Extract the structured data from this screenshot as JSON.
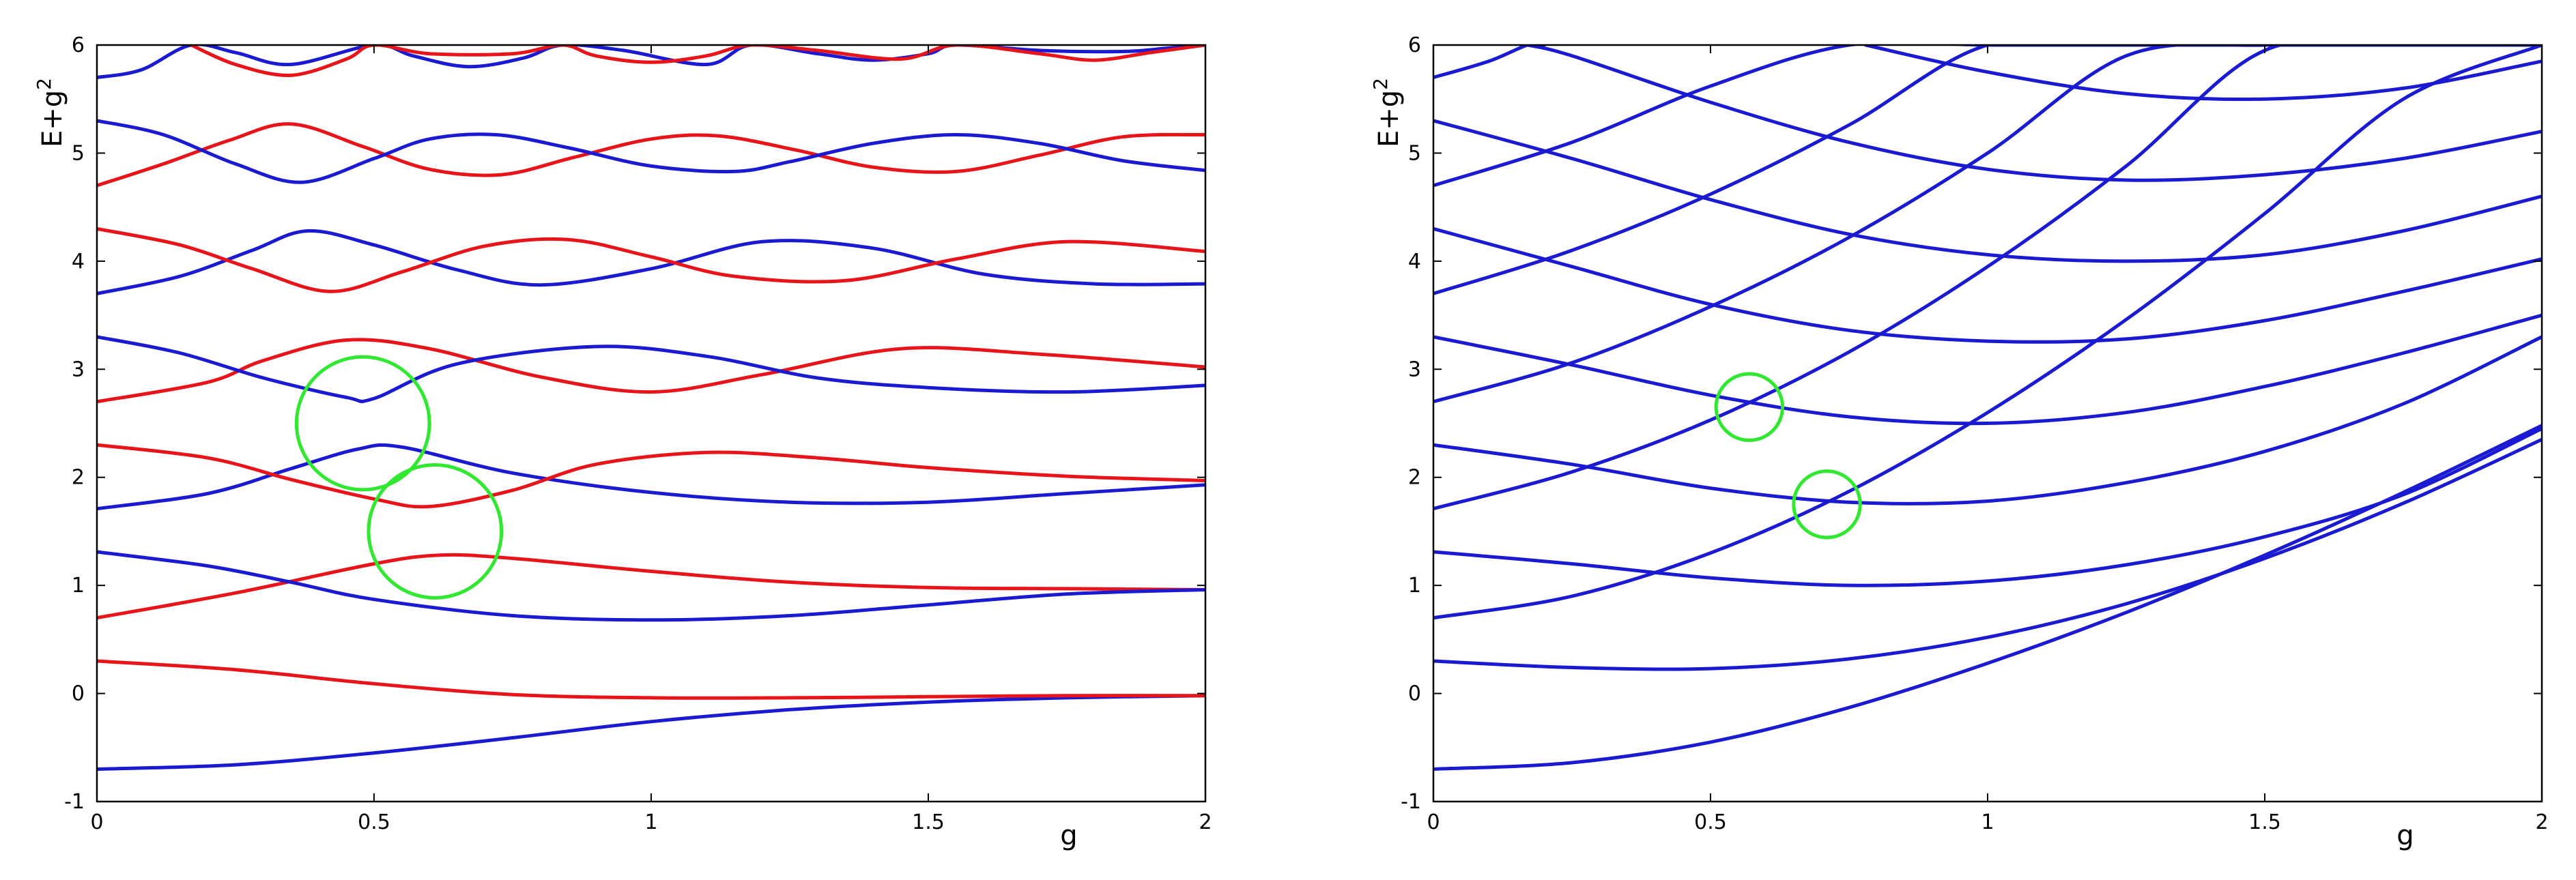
{
  "chart_data": [
    {
      "type": "line",
      "xlabel": "g",
      "ylabel": "E+g",
      "ylabel_sup": "2",
      "xlim": [
        0,
        2
      ],
      "ylim": [
        -1,
        6
      ],
      "xticks": [
        "0",
        "0.5",
        "1",
        "1.5",
        "2"
      ],
      "yticks": [
        "-1",
        "0",
        "1",
        "2",
        "3",
        "4",
        "5",
        "6"
      ],
      "grid": false,
      "legend": "none",
      "colors": {
        "red": "#e8141a",
        "blue": "#1a1ad2",
        "marker": "#2fe82f"
      },
      "series": [
        {
          "color": "blue",
          "x": [
            0,
            0.25,
            0.5,
            0.75,
            1,
            1.25,
            1.5,
            1.75,
            2
          ],
          "y": [
            -0.7,
            -0.66,
            -0.55,
            -0.41,
            -0.26,
            -0.15,
            -0.08,
            -0.04,
            -0.02
          ]
        },
        {
          "color": "red",
          "x": [
            0,
            0.25,
            0.5,
            0.75,
            1,
            1.25,
            1.5,
            1.75,
            2
          ],
          "y": [
            0.3,
            0.22,
            0.09,
            -0.01,
            -0.04,
            -0.04,
            -0.03,
            -0.02,
            -0.02
          ]
        },
        {
          "color": "red",
          "x": [
            0,
            0.25,
            0.5,
            0.62,
            0.75,
            1,
            1.25,
            1.5,
            1.75,
            2
          ],
          "y": [
            0.7,
            0.93,
            1.2,
            1.28,
            1.25,
            1.13,
            1.03,
            0.98,
            0.97,
            0.96
          ]
        },
        {
          "color": "blue",
          "x": [
            0,
            0.2,
            0.35,
            0.5,
            0.75,
            1,
            1.25,
            1.5,
            1.75,
            2
          ],
          "y": [
            1.31,
            1.18,
            1.03,
            0.87,
            0.72,
            0.68,
            0.72,
            0.82,
            0.92,
            0.96
          ]
        },
        {
          "color": "blue",
          "x": [
            0,
            0.2,
            0.35,
            0.47,
            0.55,
            0.75,
            1,
            1.25,
            1.5,
            1.75,
            2
          ],
          "y": [
            1.71,
            1.85,
            2.08,
            2.26,
            2.28,
            2.04,
            1.86,
            1.77,
            1.77,
            1.85,
            1.93
          ]
        },
        {
          "color": "red",
          "x": [
            0,
            0.2,
            0.35,
            0.5,
            0.6,
            0.75,
            0.9,
            1.1,
            1.3,
            1.5,
            1.75,
            2
          ],
          "y": [
            2.3,
            2.18,
            1.98,
            1.8,
            1.73,
            1.88,
            2.12,
            2.23,
            2.18,
            2.09,
            2.01,
            1.97
          ]
        },
        {
          "color": "red",
          "x": [
            0,
            0.2,
            0.3,
            0.45,
            0.6,
            0.8,
            1,
            1.2,
            1.45,
            1.7,
            2
          ],
          "y": [
            2.7,
            2.88,
            3.08,
            3.27,
            3.19,
            2.93,
            2.79,
            2.95,
            3.19,
            3.14,
            3.02
          ]
        },
        {
          "color": "blue",
          "x": [
            0,
            0.15,
            0.3,
            0.45,
            0.5,
            0.65,
            0.9,
            1.1,
            1.3,
            1.5,
            1.75,
            2
          ],
          "y": [
            3.3,
            3.15,
            2.92,
            2.74,
            2.73,
            3.05,
            3.21,
            3.12,
            2.92,
            2.83,
            2.79,
            2.85
          ]
        },
        {
          "color": "blue",
          "x": [
            0,
            0.15,
            0.28,
            0.38,
            0.5,
            0.65,
            0.8,
            1,
            1.2,
            1.4,
            1.6,
            1.8,
            2
          ],
          "y": [
            3.7,
            3.86,
            4.1,
            4.28,
            4.15,
            3.92,
            3.78,
            3.93,
            4.18,
            4.12,
            3.88,
            3.79,
            3.79
          ]
        },
        {
          "color": "red",
          "x": [
            0,
            0.15,
            0.28,
            0.42,
            0.55,
            0.7,
            0.85,
            1,
            1.15,
            1.35,
            1.55,
            1.75,
            2
          ],
          "y": [
            4.3,
            4.15,
            3.93,
            3.72,
            3.9,
            4.14,
            4.2,
            4.04,
            3.86,
            3.82,
            4.02,
            4.18,
            4.09
          ]
        },
        {
          "color": "red",
          "x": [
            0,
            0.12,
            0.24,
            0.35,
            0.48,
            0.6,
            0.73,
            0.86,
            1,
            1.12,
            1.26,
            1.4,
            1.55,
            1.7,
            1.85,
            2
          ],
          "y": [
            4.7,
            4.9,
            5.12,
            5.27,
            5.06,
            4.85,
            4.8,
            4.96,
            5.13,
            5.16,
            5.03,
            4.87,
            4.83,
            4.98,
            5.15,
            5.17
          ]
        },
        {
          "color": "blue",
          "x": [
            0,
            0.12,
            0.25,
            0.37,
            0.5,
            0.6,
            0.72,
            0.85,
            1,
            1.15,
            1.25,
            1.4,
            1.55,
            1.7,
            1.85,
            2
          ],
          "y": [
            5.3,
            5.17,
            4.9,
            4.73,
            4.95,
            5.13,
            5.17,
            5.05,
            4.88,
            4.83,
            4.92,
            5.09,
            5.17,
            5.09,
            4.93,
            4.84
          ]
        },
        {
          "color": "blue",
          "x": [
            0,
            0.08,
            0.17,
            0.25,
            0.35,
            0.5,
            0.57,
            0.67,
            0.77,
            0.84,
            0.95,
            1.1,
            1.18,
            1.3,
            1.4,
            1.5,
            1.55,
            1.7,
            1.85,
            1.93,
            2
          ],
          "y": [
            5.7,
            5.77,
            6.0,
            5.93,
            5.82,
            6.0,
            5.9,
            5.8,
            5.88,
            6.0,
            5.95,
            5.82,
            6.0,
            5.92,
            5.86,
            5.92,
            6.0,
            5.95,
            5.94,
            5.97,
            6.0
          ]
        },
        {
          "color": "red",
          "x": [
            0.17,
            0.25,
            0.35,
            0.45,
            0.5,
            0.6,
            0.75,
            0.84,
            0.9,
            1,
            1.1,
            1.18,
            1.3,
            1.45,
            1.55,
            1.7,
            1.8,
            1.9,
            2
          ],
          "y": [
            6.0,
            5.82,
            5.72,
            5.87,
            6.0,
            5.92,
            5.92,
            6.0,
            5.9,
            5.84,
            5.9,
            6.0,
            5.95,
            5.87,
            6.0,
            5.92,
            5.86,
            5.93,
            6.0
          ]
        }
      ],
      "annotations": [
        {
          "shape": "circle",
          "x": 0.48,
          "y": 2.5,
          "r": 0.12
        },
        {
          "shape": "circle",
          "x": 0.61,
          "y": 1.5,
          "r": 0.12
        }
      ]
    },
    {
      "type": "line",
      "xlabel": "g",
      "ylabel": "E+g",
      "ylabel_sup": "2",
      "xlim": [
        0,
        2
      ],
      "ylim": [
        -1,
        6
      ],
      "xticks": [
        "0",
        "0.5",
        "1",
        "1.5",
        "2"
      ],
      "yticks": [
        "-1",
        "0",
        "1",
        "2",
        "3",
        "4",
        "5",
        "6"
      ],
      "grid": false,
      "legend": "none",
      "colors": {
        "blue": "#1a1ad2",
        "marker": "#2fe82f"
      },
      "series": [
        {
          "color": "blue",
          "x": [
            0,
            0.25,
            0.5,
            0.75,
            1,
            1.25,
            1.5,
            1.75,
            2
          ],
          "y": [
            -0.7,
            -0.64,
            -0.45,
            -0.13,
            0.28,
            0.75,
            1.28,
            1.86,
            2.48
          ]
        },
        {
          "color": "blue",
          "x": [
            0,
            0.25,
            0.5,
            0.75,
            1,
            1.25,
            1.5,
            1.75,
            2
          ],
          "y": [
            0.3,
            0.24,
            0.23,
            0.32,
            0.52,
            0.83,
            1.25,
            1.76,
            2.35
          ]
        },
        {
          "color": "blue",
          "x": [
            0,
            0.25,
            0.5,
            0.75,
            1,
            1.25,
            1.5,
            1.75,
            2
          ],
          "y": [
            0.7,
            0.9,
            1.3,
            1.87,
            2.6,
            3.46,
            4.44,
            5.5,
            6.0
          ]
        },
        {
          "color": "blue",
          "x": [
            0,
            0.25,
            0.5,
            0.75,
            1,
            1.25,
            1.5,
            1.75,
            2
          ],
          "y": [
            1.31,
            1.2,
            1.07,
            1.0,
            1.04,
            1.19,
            1.45,
            1.84,
            2.45
          ]
        },
        {
          "color": "blue",
          "x": [
            0,
            0.25,
            0.5,
            0.75,
            1,
            1.25,
            1.5,
            1.75,
            2
          ],
          "y": [
            1.71,
            2.05,
            2.53,
            3.16,
            3.95,
            4.88,
            5.95,
            6.0,
            6.0
          ]
        },
        {
          "color": "blue",
          "x": [
            0,
            0.25,
            0.5,
            0.75,
            1,
            1.25,
            1.5,
            1.75,
            2
          ],
          "y": [
            2.3,
            2.12,
            1.9,
            1.77,
            1.78,
            1.95,
            2.24,
            2.68,
            3.3
          ]
        },
        {
          "color": "blue",
          "x": [
            0,
            0.25,
            0.5,
            0.75,
            1,
            1.25,
            1.5,
            1.75,
            2
          ],
          "y": [
            2.7,
            3.06,
            3.58,
            4.22,
            5.0,
            5.9,
            6.0,
            6.0,
            6.0
          ]
        },
        {
          "color": "blue",
          "x": [
            0,
            0.25,
            0.5,
            0.75,
            1,
            1.25,
            1.5,
            1.75,
            2
          ],
          "y": [
            3.3,
            3.04,
            2.76,
            2.56,
            2.5,
            2.6,
            2.84,
            3.15,
            3.5
          ]
        },
        {
          "color": "blue",
          "x": [
            0,
            0.25,
            0.5,
            0.75,
            1,
            1.25,
            1.5,
            1.75,
            2
          ],
          "y": [
            3.7,
            4.1,
            4.62,
            5.26,
            6.0,
            6.0,
            6.0,
            6.0,
            6.0
          ]
        },
        {
          "color": "blue",
          "x": [
            0,
            0.25,
            0.5,
            0.75,
            1,
            1.25,
            1.5,
            1.75,
            2
          ],
          "y": [
            4.3,
            3.95,
            3.6,
            3.36,
            3.26,
            3.28,
            3.45,
            3.72,
            4.02
          ]
        },
        {
          "color": "blue",
          "x": [
            0,
            0.25,
            0.5,
            0.75,
            1,
            1.25
          ],
          "y": [
            4.7,
            5.1,
            5.62,
            6.0,
            6.0,
            6.0
          ]
        },
        {
          "color": "blue",
          "x": [
            0,
            0.25,
            0.5,
            0.75,
            1,
            1.25,
            1.5,
            1.75,
            2
          ],
          "y": [
            5.3,
            4.95,
            4.57,
            4.25,
            4.06,
            4.0,
            4.06,
            4.28,
            4.6
          ]
        },
        {
          "color": "blue",
          "x": [
            0,
            0.1,
            0.17,
            0.2
          ],
          "y": [
            5.7,
            5.85,
            6.0,
            6.0
          ]
        },
        {
          "color": "blue",
          "x": [
            0.17,
            0.25,
            0.5,
            0.75,
            1,
            1.25,
            1.5,
            1.75,
            2
          ],
          "y": [
            6.0,
            5.9,
            5.47,
            5.1,
            4.85,
            4.75,
            4.8,
            4.95,
            5.2
          ]
        },
        {
          "color": "blue",
          "x": [
            0.78,
            1,
            1.25,
            1.5,
            1.75,
            2
          ],
          "y": [
            6.0,
            5.75,
            5.55,
            5.5,
            5.6,
            5.85
          ]
        }
      ],
      "annotations": [
        {
          "shape": "circle",
          "x": 0.57,
          "y": 2.65,
          "r": 0.06
        },
        {
          "shape": "circle",
          "x": 0.71,
          "y": 1.75,
          "r": 0.06
        }
      ]
    }
  ]
}
